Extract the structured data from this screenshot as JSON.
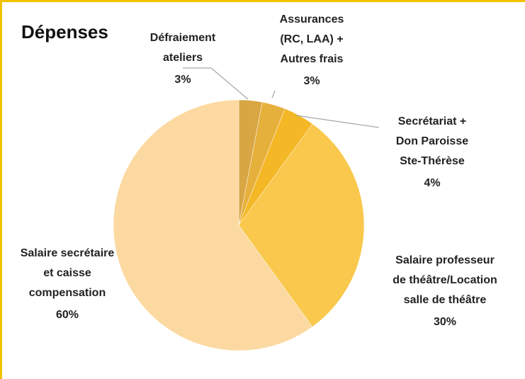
{
  "chart_data": {
    "type": "pie",
    "title": "Dépenses",
    "categories": [
      "Défraiement\nateliers",
      "Assurances\n(RC, LAA) +\nAutres frais",
      "Secrétariat +\nDon Paroisse\nSte-Thérèse",
      "Salaire professeur\nde théâtre/Location\nsalle de théâtre",
      "Salaire secrétaire\net caisse\ncompensation"
    ],
    "values": [
      3,
      3,
      4,
      30,
      60
    ],
    "value_labels": [
      "3%",
      "3%",
      "4%",
      "30%",
      "60%"
    ],
    "colors": [
      "#d9a644",
      "#e6b03c",
      "#f4b726",
      "#f9c84c",
      "#fbd9a0"
    ]
  }
}
